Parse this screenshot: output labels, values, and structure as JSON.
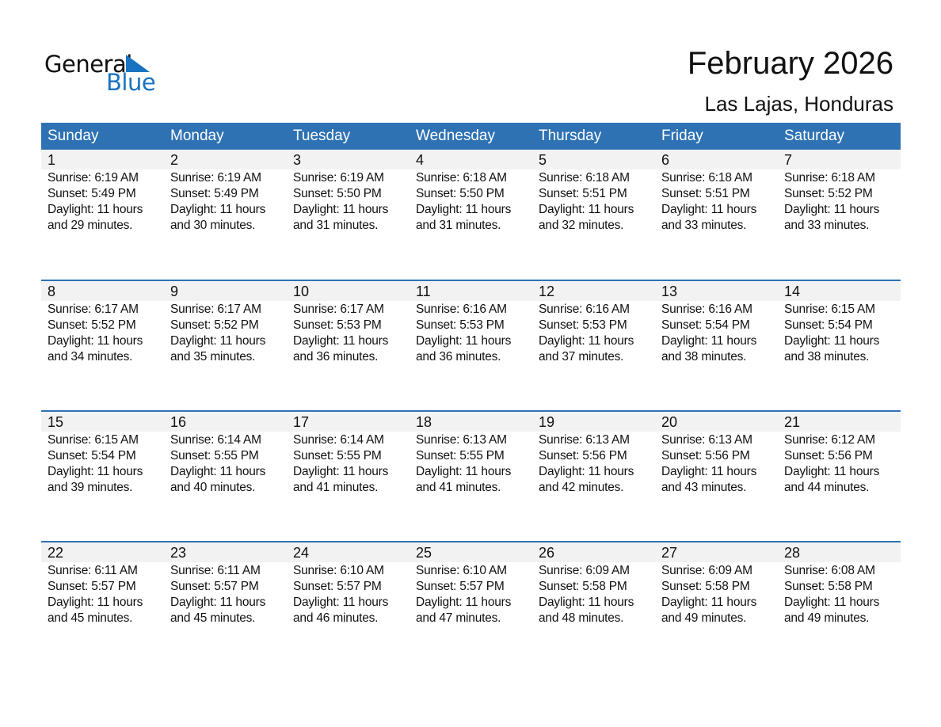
{
  "logo": {
    "line1": "General",
    "line2": "Blue",
    "accent": "#1a73c0"
  },
  "title": "February 2026",
  "subtitle": "Las Lajas, Honduras",
  "colors": {
    "header_bg": "#2e72b4",
    "date_band": "#f2f2f2"
  },
  "weekdays": [
    "Sunday",
    "Monday",
    "Tuesday",
    "Wednesday",
    "Thursday",
    "Friday",
    "Saturday"
  ],
  "weeks": [
    [
      {
        "day": "1",
        "sunrise": "Sunrise: 6:19 AM",
        "sunset": "Sunset: 5:49 PM",
        "daylight1": "Daylight: 11 hours",
        "daylight2": "and 29 minutes."
      },
      {
        "day": "2",
        "sunrise": "Sunrise: 6:19 AM",
        "sunset": "Sunset: 5:49 PM",
        "daylight1": "Daylight: 11 hours",
        "daylight2": "and 30 minutes."
      },
      {
        "day": "3",
        "sunrise": "Sunrise: 6:19 AM",
        "sunset": "Sunset: 5:50 PM",
        "daylight1": "Daylight: 11 hours",
        "daylight2": "and 31 minutes."
      },
      {
        "day": "4",
        "sunrise": "Sunrise: 6:18 AM",
        "sunset": "Sunset: 5:50 PM",
        "daylight1": "Daylight: 11 hours",
        "daylight2": "and 31 minutes."
      },
      {
        "day": "5",
        "sunrise": "Sunrise: 6:18 AM",
        "sunset": "Sunset: 5:51 PM",
        "daylight1": "Daylight: 11 hours",
        "daylight2": "and 32 minutes."
      },
      {
        "day": "6",
        "sunrise": "Sunrise: 6:18 AM",
        "sunset": "Sunset: 5:51 PM",
        "daylight1": "Daylight: 11 hours",
        "daylight2": "and 33 minutes."
      },
      {
        "day": "7",
        "sunrise": "Sunrise: 6:18 AM",
        "sunset": "Sunset: 5:52 PM",
        "daylight1": "Daylight: 11 hours",
        "daylight2": "and 33 minutes."
      }
    ],
    [
      {
        "day": "8",
        "sunrise": "Sunrise: 6:17 AM",
        "sunset": "Sunset: 5:52 PM",
        "daylight1": "Daylight: 11 hours",
        "daylight2": "and 34 minutes."
      },
      {
        "day": "9",
        "sunrise": "Sunrise: 6:17 AM",
        "sunset": "Sunset: 5:52 PM",
        "daylight1": "Daylight: 11 hours",
        "daylight2": "and 35 minutes."
      },
      {
        "day": "10",
        "sunrise": "Sunrise: 6:17 AM",
        "sunset": "Sunset: 5:53 PM",
        "daylight1": "Daylight: 11 hours",
        "daylight2": "and 36 minutes."
      },
      {
        "day": "11",
        "sunrise": "Sunrise: 6:16 AM",
        "sunset": "Sunset: 5:53 PM",
        "daylight1": "Daylight: 11 hours",
        "daylight2": "and 36 minutes."
      },
      {
        "day": "12",
        "sunrise": "Sunrise: 6:16 AM",
        "sunset": "Sunset: 5:53 PM",
        "daylight1": "Daylight: 11 hours",
        "daylight2": "and 37 minutes."
      },
      {
        "day": "13",
        "sunrise": "Sunrise: 6:16 AM",
        "sunset": "Sunset: 5:54 PM",
        "daylight1": "Daylight: 11 hours",
        "daylight2": "and 38 minutes."
      },
      {
        "day": "14",
        "sunrise": "Sunrise: 6:15 AM",
        "sunset": "Sunset: 5:54 PM",
        "daylight1": "Daylight: 11 hours",
        "daylight2": "and 38 minutes."
      }
    ],
    [
      {
        "day": "15",
        "sunrise": "Sunrise: 6:15 AM",
        "sunset": "Sunset: 5:54 PM",
        "daylight1": "Daylight: 11 hours",
        "daylight2": "and 39 minutes."
      },
      {
        "day": "16",
        "sunrise": "Sunrise: 6:14 AM",
        "sunset": "Sunset: 5:55 PM",
        "daylight1": "Daylight: 11 hours",
        "daylight2": "and 40 minutes."
      },
      {
        "day": "17",
        "sunrise": "Sunrise: 6:14 AM",
        "sunset": "Sunset: 5:55 PM",
        "daylight1": "Daylight: 11 hours",
        "daylight2": "and 41 minutes."
      },
      {
        "day": "18",
        "sunrise": "Sunrise: 6:13 AM",
        "sunset": "Sunset: 5:55 PM",
        "daylight1": "Daylight: 11 hours",
        "daylight2": "and 41 minutes."
      },
      {
        "day": "19",
        "sunrise": "Sunrise: 6:13 AM",
        "sunset": "Sunset: 5:56 PM",
        "daylight1": "Daylight: 11 hours",
        "daylight2": "and 42 minutes."
      },
      {
        "day": "20",
        "sunrise": "Sunrise: 6:13 AM",
        "sunset": "Sunset: 5:56 PM",
        "daylight1": "Daylight: 11 hours",
        "daylight2": "and 43 minutes."
      },
      {
        "day": "21",
        "sunrise": "Sunrise: 6:12 AM",
        "sunset": "Sunset: 5:56 PM",
        "daylight1": "Daylight: 11 hours",
        "daylight2": "and 44 minutes."
      }
    ],
    [
      {
        "day": "22",
        "sunrise": "Sunrise: 6:11 AM",
        "sunset": "Sunset: 5:57 PM",
        "daylight1": "Daylight: 11 hours",
        "daylight2": "and 45 minutes."
      },
      {
        "day": "23",
        "sunrise": "Sunrise: 6:11 AM",
        "sunset": "Sunset: 5:57 PM",
        "daylight1": "Daylight: 11 hours",
        "daylight2": "and 45 minutes."
      },
      {
        "day": "24",
        "sunrise": "Sunrise: 6:10 AM",
        "sunset": "Sunset: 5:57 PM",
        "daylight1": "Daylight: 11 hours",
        "daylight2": "and 46 minutes."
      },
      {
        "day": "25",
        "sunrise": "Sunrise: 6:10 AM",
        "sunset": "Sunset: 5:57 PM",
        "daylight1": "Daylight: 11 hours",
        "daylight2": "and 47 minutes."
      },
      {
        "day": "26",
        "sunrise": "Sunrise: 6:09 AM",
        "sunset": "Sunset: 5:58 PM",
        "daylight1": "Daylight: 11 hours",
        "daylight2": "and 48 minutes."
      },
      {
        "day": "27",
        "sunrise": "Sunrise: 6:09 AM",
        "sunset": "Sunset: 5:58 PM",
        "daylight1": "Daylight: 11 hours",
        "daylight2": "and 49 minutes."
      },
      {
        "day": "28",
        "sunrise": "Sunrise: 6:08 AM",
        "sunset": "Sunset: 5:58 PM",
        "daylight1": "Daylight: 11 hours",
        "daylight2": "and 49 minutes."
      }
    ]
  ]
}
